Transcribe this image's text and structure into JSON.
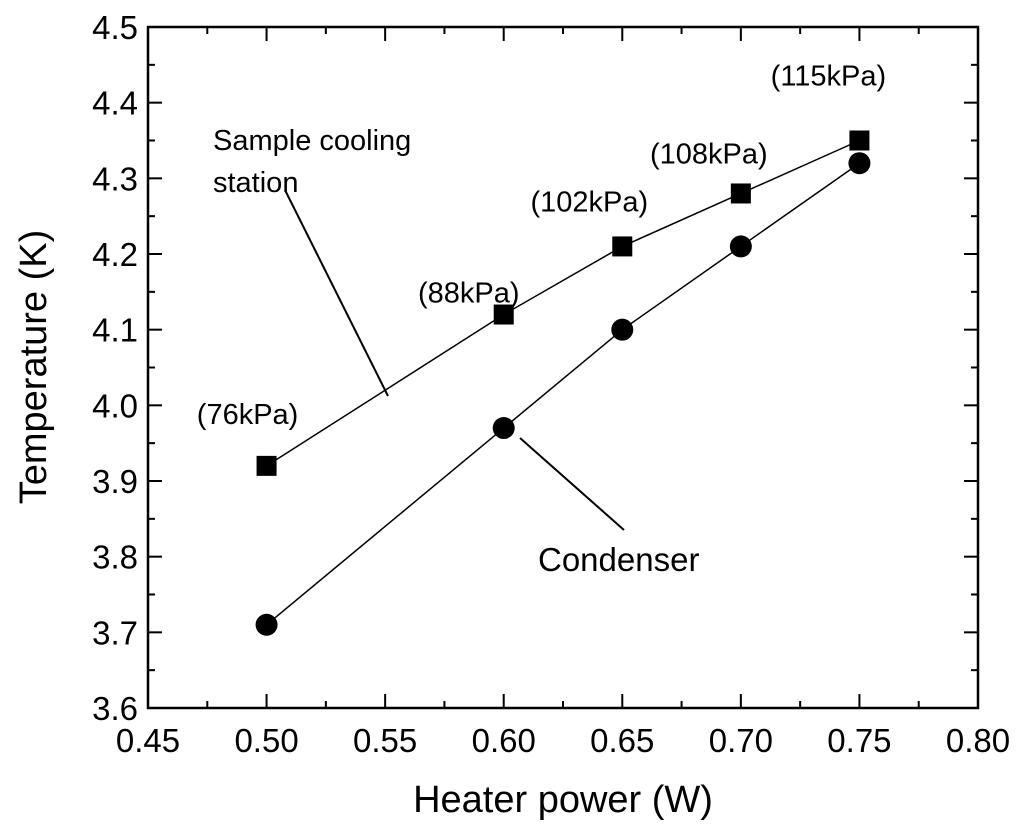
{
  "chart_data": {
    "type": "scatter",
    "xlabel": "Heater power (W)",
    "ylabel": "Temperature (K)",
    "xlim": [
      0.45,
      0.8
    ],
    "ylim": [
      3.6,
      4.5
    ],
    "x_ticks": [
      "0.45",
      "0.50",
      "0.55",
      "0.60",
      "0.65",
      "0.70",
      "0.75",
      "0.80"
    ],
    "y_ticks": [
      "3.6",
      "3.7",
      "3.8",
      "3.9",
      "4.0",
      "4.1",
      "4.2",
      "4.3",
      "4.4",
      "4.5"
    ],
    "grid": false,
    "series": [
      {
        "name": "Sample cooling station",
        "marker": "square",
        "color": "#000000",
        "x": [
          0.5,
          0.6,
          0.65,
          0.7,
          0.75
        ],
        "y": [
          3.92,
          4.12,
          4.21,
          4.28,
          4.35
        ]
      },
      {
        "name": "Condenser",
        "marker": "circle",
        "color": "#000000",
        "x": [
          0.5,
          0.6,
          0.65,
          0.7,
          0.75
        ],
        "y": [
          3.71,
          3.97,
          4.1,
          4.21,
          4.32
        ]
      }
    ],
    "point_labels": [
      "(76kPa)",
      "(88kPa)",
      "(102kPa)",
      "(108kPa)",
      "(115kPa)"
    ],
    "annotations": {
      "sample_line1": "Sample cooling",
      "sample_line2": "station",
      "condenser": "Condenser"
    }
  }
}
